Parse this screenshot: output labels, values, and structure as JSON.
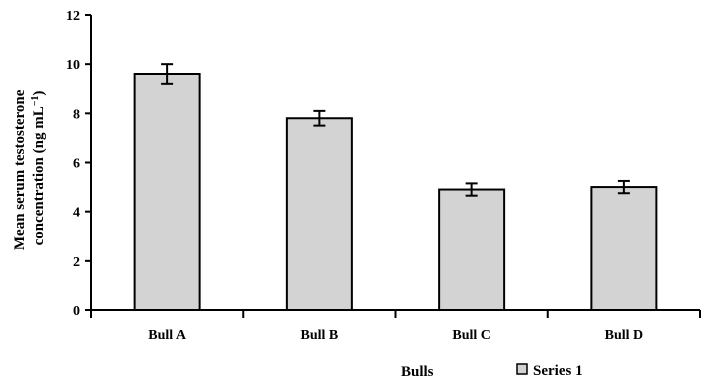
{
  "chart_data": {
    "type": "bar",
    "categories": [
      "Bull A",
      "Bull B",
      "Bull C",
      "Bull D"
    ],
    "series": [
      {
        "name": "Series 1",
        "values": [
          9.6,
          7.8,
          4.9,
          5.0
        ],
        "errors": [
          0.4,
          0.3,
          0.25,
          0.25
        ]
      }
    ],
    "title": "",
    "xlabel": "Bulls",
    "ylabel_line1": "Mean serum testosterone",
    "ylabel_line2": "concentration (ng mL",
    "ylabel_unit_sup": "−1",
    "ylabel_close": ")",
    "ylim": [
      0,
      12
    ],
    "yticks": [
      "0",
      "2",
      "4",
      "6",
      "8",
      "10",
      "12"
    ],
    "grid": false,
    "legend_position": "bottom-right",
    "colors": {
      "bar_fill": "#d3d3d3",
      "bar_stroke": "#000000",
      "axis": "#000000"
    }
  }
}
